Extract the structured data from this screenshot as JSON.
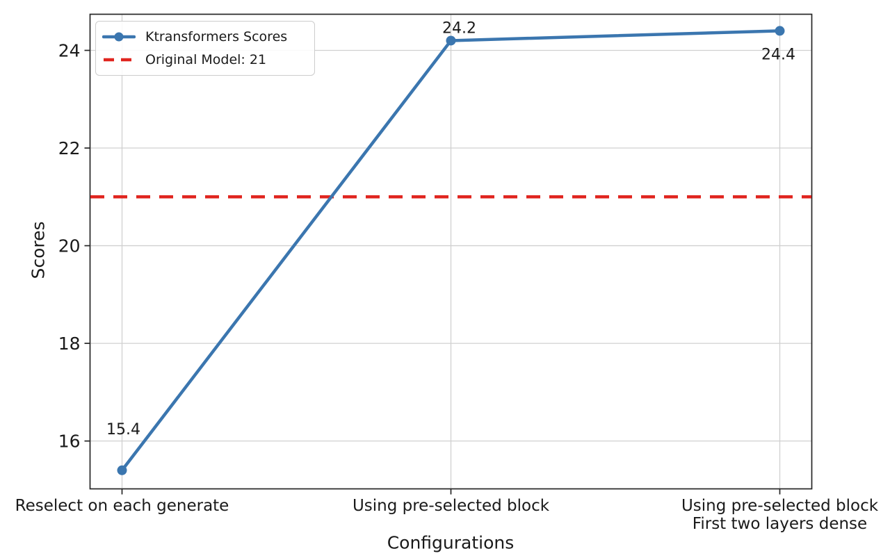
{
  "chart_data": {
    "type": "line",
    "title": "",
    "xlabel": "Configurations",
    "ylabel": "Scores",
    "categories": [
      "Reselect on each generate",
      "Using pre-selected block",
      "Using pre-selected block\nFirst two layers dense"
    ],
    "series": [
      {
        "name": "Ktransformers Scores",
        "values": [
          15.4,
          24.2,
          24.4
        ],
        "color": "#3b76af",
        "marker": "circle"
      }
    ],
    "point_labels": [
      "15.4",
      "24.2",
      "24.4"
    ],
    "reference_line": {
      "label": "Original Model: 21",
      "value": 21,
      "color": "#e0251f",
      "style": "dashed"
    },
    "yticks": [
      16,
      18,
      20,
      22,
      24
    ],
    "ylim": [
      15.02,
      24.74
    ],
    "grid": true,
    "legend_position": "upper left"
  },
  "colors": {
    "grid": "#d0d0d0",
    "spine": "#262626",
    "text": "#1a1a1a",
    "background": "#ffffff",
    "legend_border": "#cccccc"
  }
}
